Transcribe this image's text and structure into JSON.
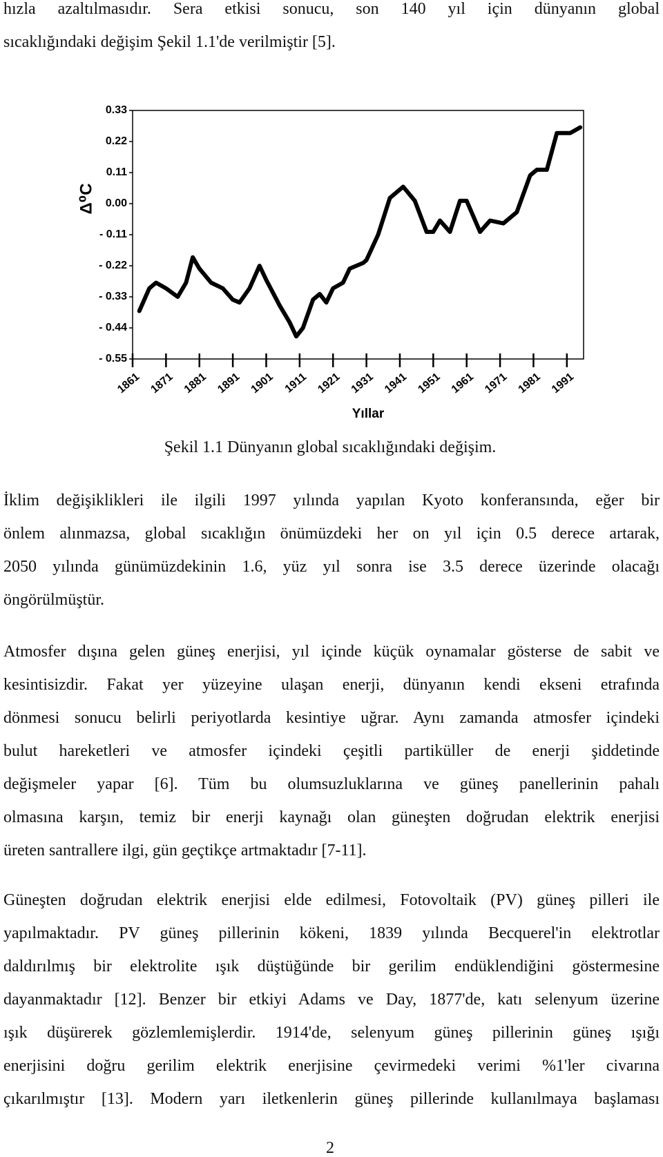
{
  "paragraphs": [
    [
      "hızla azaltılmasıdır. Sera etkisi sonucu, son 140 yıl için dünyanın global",
      "sıcaklığındaki değişim Şekil 1.1'de verilmiştir [5]."
    ],
    [
      "İklim değişiklikleri ile ilgili 1997 yılında yapılan Kyoto konferansında, eğer bir",
      "önlem alınmazsa, global sıcaklığın önümüzdeki her on yıl için 0.5 derece artarak,",
      "2050 yılında günümüzdekinin 1.6, yüz yıl sonra ise 3.5 derece üzerinde olacağı",
      "öngörülmüştür."
    ],
    [
      "Atmosfer dışına gelen güneş enerjisi, yıl içinde küçük oynamalar gösterse de sabit ve",
      "kesintisizdir. Fakat yer yüzeyine ulaşan enerji, dünyanın kendi ekseni etrafında",
      "dönmesi sonucu belirli periyotlarda kesintiye uğrar. Aynı zamanda atmosfer içindeki",
      "bulut hareketleri ve atmosfer içindeki çeşitli partiküller de enerji şiddetinde",
      "değişmeler yapar [6]. Tüm bu olumsuzluklarına ve güneş panellerinin pahalı",
      "olmasına karşın, temiz bir enerji kaynağı olan güneşten doğrudan elektrik enerjisi",
      "üreten santrallere ilgi, gün geçtikçe artmaktadır [7-11]."
    ],
    [
      "Güneşten doğrudan elektrik enerjisi elde edilmesi, Fotovoltaik (PV) güneş pilleri ile",
      "yapılmaktadır. PV güneş pillerinin kökeni, 1839 yılında Becquerel'in elektrotlar",
      "daldırılmış bir elektrolite ışık düştüğünde bir gerilim endüklendiğini göstermesine",
      "dayanmaktadır [12]. Benzer bir etkiyi Adams ve Day, 1877'de, katı selenyum üzerine",
      "ışık düşürerek gözlemlemişlerdir. 1914'de, selenyum güneş pillerinin güneş ışığı",
      "enerjisini doğru gerilim elektrik enerjisine çevirmedeki verimi %1'ler civarına",
      "çıkarılmıştır [13]. Modern yarı iletkenlerin güneş pillerinde kullanılmaya başlaması"
    ]
  ],
  "chart_data": {
    "type": "line",
    "ylabel": "Δ⁰C",
    "xlabel": "Yıllar",
    "color": "#000000",
    "x": [
      1863,
      1866,
      1868,
      1871,
      1874.5,
      1877,
      1879,
      1881,
      1884.5,
      1888,
      1891,
      1893,
      1896,
      1899,
      1901,
      1905,
      1908,
      1910,
      1912,
      1915,
      1917,
      1919,
      1921,
      1924,
      1926,
      1930,
      1931,
      1934.5,
      1938,
      1942,
      1945.5,
      1949,
      1951,
      1953,
      1956,
      1959,
      1961,
      1965,
      1968,
      1972,
      1976,
      1980,
      1982,
      1985,
      1988,
      1992,
      1995
    ],
    "values": [
      -0.38,
      -0.3,
      -0.28,
      -0.3,
      -0.33,
      -0.28,
      -0.19,
      -0.23,
      -0.28,
      -0.3,
      -0.34,
      -0.35,
      -0.3,
      -0.22,
      -0.27,
      -0.36,
      -0.42,
      -0.47,
      -0.44,
      -0.34,
      -0.32,
      -0.35,
      -0.3,
      -0.28,
      -0.23,
      -0.21,
      -0.2,
      -0.11,
      0.02,
      0.06,
      0.01,
      -0.1,
      -0.1,
      -0.06,
      -0.1,
      0.01,
      0.01,
      -0.1,
      -0.06,
      -0.07,
      -0.03,
      0.1,
      0.12,
      0.12,
      0.25,
      0.25,
      0.27
    ],
    "xlim": [
      1861,
      1996
    ],
    "ylim": [
      -0.55,
      0.33
    ],
    "xticks": [
      1861,
      1871,
      1881,
      1891,
      1901,
      1911,
      1921,
      1931,
      1941,
      1951,
      1961,
      1971,
      1981,
      1991
    ],
    "yticks": [
      0.33,
      0.22,
      0.11,
      {
        "value": 0,
        "label": "0.00"
      },
      {
        "value": -0.11,
        "label": "- 0.11"
      },
      {
        "value": -0.22,
        "label": "- 0.22"
      },
      {
        "value": -0.33,
        "label": "- 0.33"
      },
      {
        "value": -0.44,
        "label": "- 0.44"
      },
      {
        "value": -0.55,
        "label": "- 0.55"
      }
    ]
  },
  "caption": "Şekil 1.1 Dünyanın global sıcaklığındaki değişim.",
  "page_number": "2"
}
